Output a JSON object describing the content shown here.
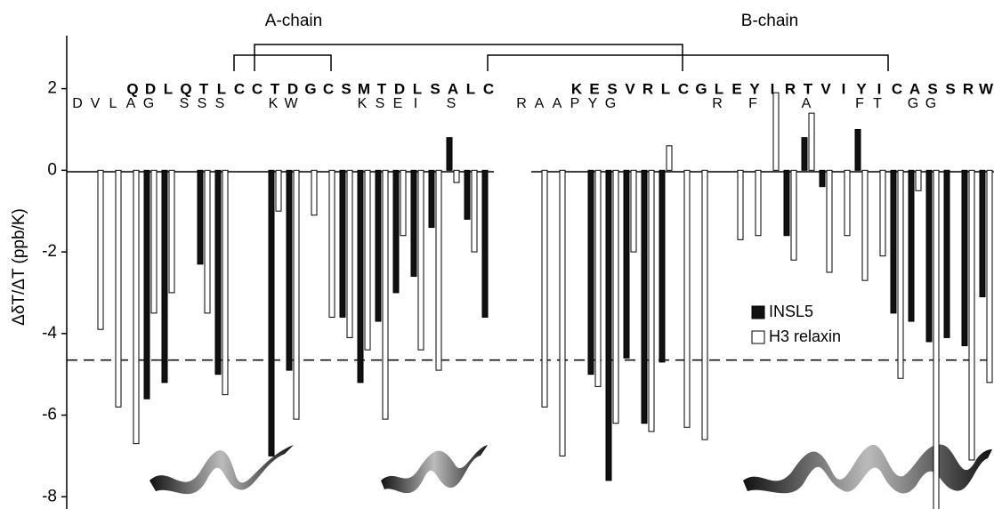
{
  "chart_data": {
    "type": "bar",
    "ylabel": "ΔδT/ΔT (ppb/K)",
    "ylim": [
      -8.3,
      3.3
    ],
    "yticks": [
      -8,
      -6,
      -4,
      -2,
      0,
      2
    ],
    "threshold": -4.65,
    "chains": [
      {
        "title": "A-chain",
        "categories": [
          null,
          null,
          null,
          "Q",
          "D",
          "L",
          "Q",
          "T",
          "L",
          "C",
          "C",
          "T",
          "D",
          "G",
          "C",
          "S",
          "M",
          "T",
          "D",
          "L",
          "S",
          "A",
          "L",
          "C"
        ],
        "h3_sequence": [
          "D",
          "V",
          "L",
          "A",
          "G",
          null,
          "S",
          "S",
          "S",
          null,
          null,
          "K",
          "W",
          null,
          null,
          null,
          "K",
          "S",
          "E",
          "I",
          null,
          "S",
          null,
          null
        ]
      },
      {
        "title": "B-chain",
        "categories": [
          null,
          null,
          null,
          "K",
          "E",
          "S",
          "V",
          "R",
          "L",
          "C",
          "G",
          "L",
          "E",
          "Y",
          "I",
          "R",
          "T",
          "V",
          "I",
          "Y",
          "I",
          "C",
          "A",
          "S",
          "S",
          "R",
          "W"
        ],
        "h3_sequence": [
          "R",
          "A",
          "A",
          "P",
          "Y",
          "G",
          null,
          null,
          null,
          null,
          null,
          "R",
          null,
          "F",
          null,
          null,
          "A",
          null,
          null,
          "F",
          "T",
          null,
          "G",
          "G",
          null,
          null,
          null
        ]
      }
    ],
    "series": [
      {
        "name": "INSL5",
        "color": "#111111",
        "values": [
          null,
          null,
          null,
          null,
          -5.6,
          -5.2,
          null,
          -2.3,
          -5.0,
          null,
          null,
          -7.0,
          -4.9,
          null,
          null,
          -3.6,
          -5.2,
          -3.7,
          -3.0,
          -2.6,
          -1.4,
          0.8,
          -1.2,
          -3.6,
          null,
          null,
          null,
          null,
          -5.0,
          -7.6,
          -4.6,
          -6.2,
          -4.7,
          null,
          null,
          null,
          null,
          null,
          null,
          -1.6,
          0.8,
          -0.4,
          null,
          1.0,
          null,
          -3.5,
          -3.7,
          -4.2,
          -4.1,
          -4.3,
          -3.1
        ]
      },
      {
        "name": "H3 relaxin",
        "color": "#ffffff",
        "values": [
          null,
          -3.9,
          -5.8,
          -6.7,
          -3.5,
          -3.0,
          null,
          -3.5,
          -5.5,
          null,
          null,
          -1.0,
          -6.1,
          -1.1,
          -3.6,
          -4.1,
          -4.4,
          -6.1,
          -1.6,
          -4.4,
          -4.9,
          -0.3,
          -2.0,
          null,
          null,
          -5.8,
          -7.0,
          null,
          -5.3,
          -6.2,
          -2.0,
          -6.4,
          0.6,
          -6.3,
          -6.6,
          null,
          -1.7,
          -1.6,
          1.9,
          -2.2,
          1.4,
          -2.5,
          -1.6,
          -2.7,
          -2.1,
          -5.1,
          -0.5,
          -8.6,
          null,
          -7.1,
          -5.2
        ]
      }
    ]
  }
}
